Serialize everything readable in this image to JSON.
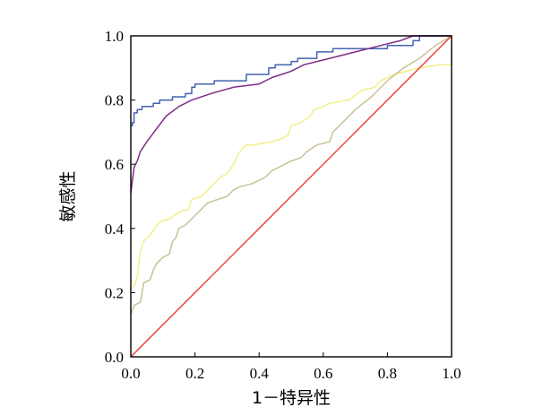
{
  "chart_data": {
    "type": "line",
    "xlabel": "1－特异性",
    "ylabel": "敏感性",
    "xlim": [
      0,
      1
    ],
    "ylim": [
      0,
      1
    ],
    "x_ticks": [
      "0.0",
      "0.2",
      "0.4",
      "0.6",
      "0.8",
      "1.0"
    ],
    "y_ticks": [
      "0.0",
      "0.2",
      "0.4",
      "0.6",
      "0.8",
      "1.0"
    ],
    "grid": false,
    "legend": "none",
    "series": [
      {
        "color": "#4463b0",
        "points": [
          [
            0,
            0.72
          ],
          [
            0.005,
            0.72
          ],
          [
            0.005,
            0.73
          ],
          [
            0.01,
            0.73
          ],
          [
            0.01,
            0.76
          ],
          [
            0.02,
            0.76
          ],
          [
            0.02,
            0.77
          ],
          [
            0.035,
            0.77
          ],
          [
            0.035,
            0.78
          ],
          [
            0.07,
            0.78
          ],
          [
            0.07,
            0.79
          ],
          [
            0.09,
            0.79
          ],
          [
            0.09,
            0.8
          ],
          [
            0.13,
            0.8
          ],
          [
            0.13,
            0.81
          ],
          [
            0.17,
            0.81
          ],
          [
            0.17,
            0.82
          ],
          [
            0.19,
            0.82
          ],
          [
            0.19,
            0.84
          ],
          [
            0.2,
            0.84
          ],
          [
            0.2,
            0.85
          ],
          [
            0.26,
            0.85
          ],
          [
            0.26,
            0.86
          ],
          [
            0.36,
            0.86
          ],
          [
            0.36,
            0.88
          ],
          [
            0.43,
            0.88
          ],
          [
            0.43,
            0.89
          ],
          [
            0.43,
            0.9
          ],
          [
            0.45,
            0.9
          ],
          [
            0.45,
            0.91
          ],
          [
            0.5,
            0.91
          ],
          [
            0.5,
            0.92
          ],
          [
            0.52,
            0.92
          ],
          [
            0.52,
            0.93
          ],
          [
            0.58,
            0.93
          ],
          [
            0.58,
            0.95
          ],
          [
            0.63,
            0.95
          ],
          [
            0.63,
            0.96
          ],
          [
            0.8,
            0.96
          ],
          [
            0.8,
            0.97
          ],
          [
            0.88,
            0.97
          ],
          [
            0.88,
            0.985
          ],
          [
            0.9,
            0.985
          ],
          [
            0.9,
            1.0
          ],
          [
            1.0,
            1.0
          ]
        ]
      },
      {
        "color": "#7e2d86",
        "points": [
          [
            0,
            0.51
          ],
          [
            0.01,
            0.59
          ],
          [
            0.02,
            0.61
          ],
          [
            0.03,
            0.64
          ],
          [
            0.05,
            0.67
          ],
          [
            0.08,
            0.71
          ],
          [
            0.11,
            0.75
          ],
          [
            0.15,
            0.78
          ],
          [
            0.19,
            0.8
          ],
          [
            0.25,
            0.82
          ],
          [
            0.32,
            0.84
          ],
          [
            0.4,
            0.85
          ],
          [
            0.44,
            0.87
          ],
          [
            0.47,
            0.88
          ],
          [
            0.5,
            0.89
          ],
          [
            0.54,
            0.91
          ],
          [
            0.62,
            0.93
          ],
          [
            0.7,
            0.95
          ],
          [
            0.78,
            0.97
          ],
          [
            0.84,
            0.985
          ],
          [
            0.88,
            1.0
          ],
          [
            1.0,
            1.0
          ]
        ]
      },
      {
        "color": "#f2ef8a",
        "points": [
          [
            0,
            0.21
          ],
          [
            0.01,
            0.22
          ],
          [
            0.02,
            0.25
          ],
          [
            0.03,
            0.33
          ],
          [
            0.04,
            0.36
          ],
          [
            0.06,
            0.38
          ],
          [
            0.09,
            0.42
          ],
          [
            0.12,
            0.43
          ],
          [
            0.15,
            0.45
          ],
          [
            0.18,
            0.46
          ],
          [
            0.19,
            0.49
          ],
          [
            0.22,
            0.5
          ],
          [
            0.25,
            0.53
          ],
          [
            0.28,
            0.56
          ],
          [
            0.3,
            0.57
          ],
          [
            0.32,
            0.6
          ],
          [
            0.34,
            0.64
          ],
          [
            0.36,
            0.66
          ],
          [
            0.38,
            0.66
          ],
          [
            0.44,
            0.67
          ],
          [
            0.47,
            0.68
          ],
          [
            0.49,
            0.69
          ],
          [
            0.5,
            0.72
          ],
          [
            0.53,
            0.73
          ],
          [
            0.56,
            0.75
          ],
          [
            0.57,
            0.77
          ],
          [
            0.6,
            0.78
          ],
          [
            0.62,
            0.79
          ],
          [
            0.68,
            0.8
          ],
          [
            0.72,
            0.83
          ],
          [
            0.76,
            0.84
          ],
          [
            0.78,
            0.86
          ],
          [
            0.82,
            0.88
          ],
          [
            0.86,
            0.89
          ],
          [
            0.9,
            0.9
          ],
          [
            0.96,
            0.91
          ],
          [
            1.0,
            0.91
          ],
          [
            1.0,
            1.0
          ]
        ]
      },
      {
        "color": "#c8c198",
        "points": [
          [
            0,
            0.13
          ],
          [
            0.01,
            0.16
          ],
          [
            0.03,
            0.17
          ],
          [
            0.04,
            0.23
          ],
          [
            0.06,
            0.24
          ],
          [
            0.07,
            0.27
          ],
          [
            0.08,
            0.29
          ],
          [
            0.1,
            0.31
          ],
          [
            0.12,
            0.32
          ],
          [
            0.13,
            0.36
          ],
          [
            0.14,
            0.37
          ],
          [
            0.15,
            0.4
          ],
          [
            0.17,
            0.41
          ],
          [
            0.18,
            0.42
          ],
          [
            0.2,
            0.44
          ],
          [
            0.22,
            0.46
          ],
          [
            0.24,
            0.48
          ],
          [
            0.27,
            0.49
          ],
          [
            0.3,
            0.5
          ],
          [
            0.32,
            0.52
          ],
          [
            0.34,
            0.53
          ],
          [
            0.38,
            0.54
          ],
          [
            0.4,
            0.55
          ],
          [
            0.42,
            0.56
          ],
          [
            0.44,
            0.58
          ],
          [
            0.46,
            0.59
          ],
          [
            0.48,
            0.6
          ],
          [
            0.5,
            0.61
          ],
          [
            0.53,
            0.62
          ],
          [
            0.55,
            0.64
          ],
          [
            0.58,
            0.66
          ],
          [
            0.62,
            0.67
          ],
          [
            0.63,
            0.7
          ],
          [
            0.66,
            0.73
          ],
          [
            0.7,
            0.77
          ],
          [
            0.75,
            0.81
          ],
          [
            0.8,
            0.86
          ],
          [
            0.85,
            0.9
          ],
          [
            0.9,
            0.93
          ],
          [
            0.95,
            0.97
          ],
          [
            1.0,
            1.0
          ]
        ]
      },
      {
        "color": "#e8453c",
        "points": [
          [
            0,
            0
          ],
          [
            1,
            1
          ]
        ]
      }
    ]
  }
}
